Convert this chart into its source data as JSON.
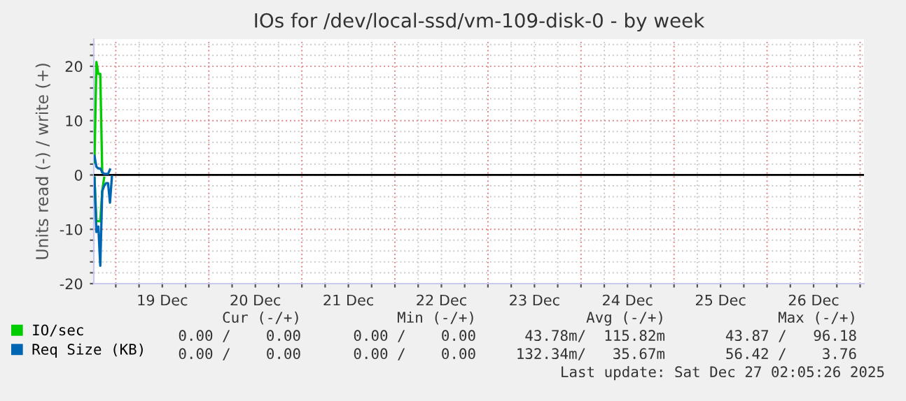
{
  "chart_data": {
    "type": "line",
    "title": "IOs for /dev/local-ssd/vm-109-disk-0 - by week",
    "ylabel": "Units read (-) / write (+)",
    "xlim": [
      "2025-12-18T18:20",
      "2025-12-27T01:00"
    ],
    "xticks": [
      {
        "value": "2025-12-19T00:00",
        "label": null
      },
      {
        "value": "2025-12-19T06:00",
        "label": null
      },
      {
        "value": "2025-12-19T12:00",
        "label": "19 Dec"
      },
      {
        "value": "2025-12-19T18:00",
        "label": null
      },
      {
        "value": "2025-12-20T00:00",
        "label": null
      },
      {
        "value": "2025-12-20T06:00",
        "label": null
      },
      {
        "value": "2025-12-20T12:00",
        "label": "20 Dec"
      },
      {
        "value": "2025-12-20T18:00",
        "label": null
      },
      {
        "value": "2025-12-21T00:00",
        "label": null
      },
      {
        "value": "2025-12-21T06:00",
        "label": null
      },
      {
        "value": "2025-12-21T12:00",
        "label": "21 Dec"
      },
      {
        "value": "2025-12-21T18:00",
        "label": null
      },
      {
        "value": "2025-12-22T00:00",
        "label": null
      },
      {
        "value": "2025-12-22T06:00",
        "label": null
      },
      {
        "value": "2025-12-22T12:00",
        "label": "22 Dec"
      },
      {
        "value": "2025-12-22T18:00",
        "label": null
      },
      {
        "value": "2025-12-23T00:00",
        "label": null
      },
      {
        "value": "2025-12-23T06:00",
        "label": null
      },
      {
        "value": "2025-12-23T12:00",
        "label": "23 Dec"
      },
      {
        "value": "2025-12-23T18:00",
        "label": null
      },
      {
        "value": "2025-12-24T00:00",
        "label": null
      },
      {
        "value": "2025-12-24T06:00",
        "label": null
      },
      {
        "value": "2025-12-24T12:00",
        "label": "24 Dec"
      },
      {
        "value": "2025-12-24T18:00",
        "label": null
      },
      {
        "value": "2025-12-25T00:00",
        "label": null
      },
      {
        "value": "2025-12-25T06:00",
        "label": null
      },
      {
        "value": "2025-12-25T12:00",
        "label": "25 Dec"
      },
      {
        "value": "2025-12-25T18:00",
        "label": null
      },
      {
        "value": "2025-12-26T00:00",
        "label": null
      },
      {
        "value": "2025-12-26T06:00",
        "label": null
      },
      {
        "value": "2025-12-26T12:00",
        "label": "26 Dec"
      },
      {
        "value": "2025-12-26T18:00",
        "label": null
      },
      {
        "value": "2025-12-27T00:00",
        "label": null
      }
    ],
    "ylim": [
      -20,
      25
    ],
    "yticks": [
      -20,
      {
        "value": -18,
        "label": null
      },
      {
        "value": -16,
        "label": null
      },
      {
        "value": -14,
        "label": null
      },
      {
        "value": -12,
        "label": null
      },
      -10,
      {
        "value": -8,
        "label": null
      },
      {
        "value": -6,
        "label": null
      },
      {
        "value": -4,
        "label": null
      },
      {
        "value": -2,
        "label": null
      },
      0,
      {
        "value": 2,
        "label": null
      },
      {
        "value": 4,
        "label": null
      },
      {
        "value": 6,
        "label": null
      },
      {
        "value": 8,
        "label": null
      },
      10,
      {
        "value": 12,
        "label": null
      },
      {
        "value": 14,
        "label": null
      },
      {
        "value": 16,
        "label": null
      },
      {
        "value": 18,
        "label": null
      },
      20,
      {
        "value": 22,
        "label": null
      },
      {
        "value": 24,
        "label": null
      }
    ],
    "grid": true,
    "legend": "bottom left",
    "marker": "none",
    "line_style": "solid",
    "ref_lines": [
      {
        "axis": "y",
        "value": 0,
        "color": "#000000"
      }
    ],
    "series": [
      {
        "name": "IO/sec",
        "color": "#00cc00",
        "x": [
          "2025-12-18T18:30",
          "2025-12-18T19:00",
          "2025-12-18T19:30",
          "2025-12-18T20:00",
          "2025-12-18T20:30"
        ],
        "values": [
          2.3,
          20.8,
          18.6,
          18.6,
          0.5
        ]
      },
      {
        "color": "#00cc00",
        "x": [
          "2025-12-18T18:30",
          "2025-12-18T19:00",
          "2025-12-18T19:30",
          "2025-12-18T20:00",
          "2025-12-18T20:30",
          "2025-12-18T21:00"
        ],
        "values": [
          -0.5,
          -8.5,
          -8.5,
          -8.5,
          -3,
          -0.5
        ]
      },
      {
        "name": "Req Size (KB)",
        "color": "#0066b3",
        "x": [
          "2025-12-18T18:30",
          "2025-12-18T19:00",
          "2025-12-18T19:30",
          "2025-12-18T20:00",
          "2025-12-18T20:30",
          "2025-12-18T21:00",
          "2025-12-18T21:30",
          "2025-12-18T22:00",
          "2025-12-18T22:30"
        ],
        "values": [
          3.5,
          1.5,
          1.2,
          1.2,
          0.5,
          0.2,
          0.2,
          0.2,
          1
        ]
      },
      {
        "color": "#0066b3",
        "x": [
          "2025-12-18T18:30",
          "2025-12-18T19:00",
          "2025-12-18T19:30",
          "2025-12-18T20:00",
          "2025-12-18T20:30",
          "2025-12-18T21:00",
          "2025-12-18T21:30",
          "2025-12-18T22:00",
          "2025-12-18T22:30",
          "2025-12-18T23:00"
        ],
        "values": [
          -0.5,
          -10.5,
          -9.5,
          -16.7,
          -3,
          -2,
          -1.5,
          -1.5,
          -5.1,
          -0.3
        ]
      }
    ],
    "annotations": [
      "Cur (-/+)",
      "Min (-/+)",
      "Avg (-/+)",
      "Max (-/+)",
      "0.00 /    0.00",
      "0.00 /    0.00",
      "43.78m/  115.82m",
      "43.87 /   96.18",
      "0.00 /    0.00",
      "0.00 /    0.00",
      "132.34m/   35.67m",
      "56.42 /    3.76",
      "Last update: Sat Dec 27 02:05:26 2025"
    ]
  }
}
